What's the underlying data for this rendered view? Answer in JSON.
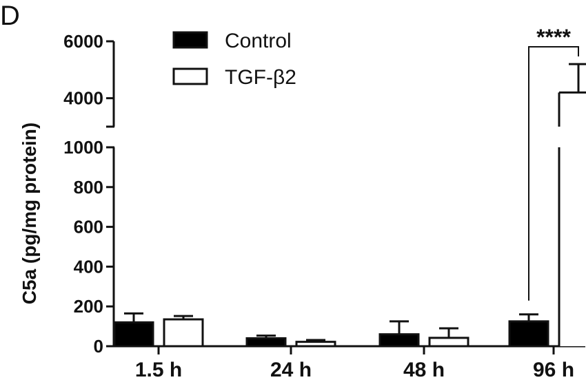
{
  "chart_data": {
    "type": "bar",
    "panel_label": "D",
    "ylabel": "C5a (pg/mg protein)",
    "y_axis_break": {
      "lower_range": [
        0,
        1000
      ],
      "upper_range": [
        3000,
        6000
      ]
    },
    "yticks_lower": [
      "0",
      "200",
      "400",
      "600",
      "800",
      "1000"
    ],
    "yticks_upper": [
      "4000",
      "6000"
    ],
    "categories": [
      "1.5 h",
      "24 h",
      "48 h",
      "96 h"
    ],
    "series": [
      {
        "name": "Control",
        "fill": "#000000",
        "values": [
          120,
          40,
          60,
          125
        ],
        "errors": [
          45,
          13,
          65,
          35
        ]
      },
      {
        "name": "TGF-β2",
        "fill": "#ffffff",
        "values": [
          135,
          22,
          42,
          4200
        ],
        "errors": [
          17,
          9,
          48,
          1000
        ]
      }
    ],
    "significance": {
      "label": "****",
      "category": "96 h"
    },
    "legend_position": "top-left",
    "grid": false
  }
}
